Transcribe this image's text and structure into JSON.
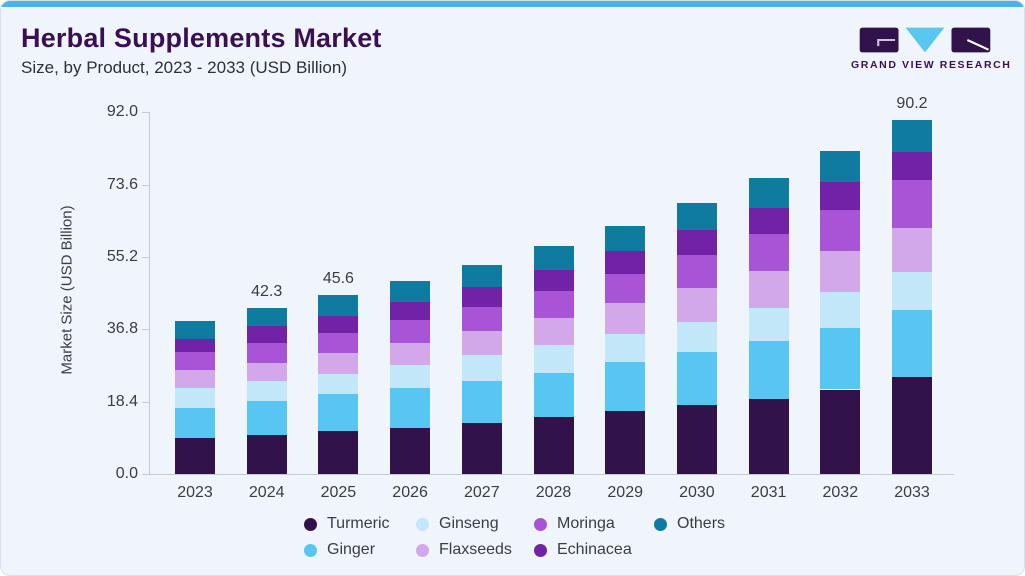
{
  "header": {
    "title": "Herbal Supplements Market",
    "subtitle": "Size, by Product, 2023 - 2033 (USD Billion)"
  },
  "brand": {
    "name": "GRAND VIEW RESEARCH",
    "logo_colors": {
      "block": "#31124a",
      "triangle": "#5ac8ee"
    }
  },
  "chart_data": {
    "type": "bar",
    "stacked": true,
    "title": "Herbal Supplements Market",
    "xlabel": "",
    "ylabel": "Market Size (USD Billion)",
    "categories": [
      "2023",
      "2024",
      "2025",
      "2026",
      "2027",
      "2028",
      "2029",
      "2030",
      "2031",
      "2032",
      "2033"
    ],
    "yticks": [
      0.0,
      18.4,
      36.8,
      55.2,
      73.6,
      92.0
    ],
    "ylim": [
      0,
      92
    ],
    "grid": false,
    "legend_position": "bottom",
    "series": [
      {
        "name": "Turmeric",
        "color": "#321349",
        "values": [
          9.1,
          10.0,
          10.9,
          11.7,
          13.1,
          14.5,
          16.0,
          17.6,
          19.2,
          21.5,
          24.6
        ]
      },
      {
        "name": "Ginger",
        "color": "#57c7f2",
        "values": [
          7.6,
          8.5,
          9.5,
          10.1,
          10.6,
          11.3,
          12.4,
          13.4,
          14.7,
          15.7,
          17.1
        ]
      },
      {
        "name": "Ginseng",
        "color": "#c2e7f8",
        "values": [
          5.1,
          5.1,
          5.1,
          5.9,
          6.5,
          7.0,
          7.3,
          7.8,
          8.4,
          9.0,
          9.6
        ]
      },
      {
        "name": "Flaxseeds",
        "color": "#d2a8ea",
        "values": [
          4.6,
          4.7,
          5.4,
          5.7,
          6.3,
          7.0,
          7.7,
          8.5,
          9.4,
          10.5,
          11.3
        ]
      },
      {
        "name": "Moringa",
        "color": "#a854d6",
        "values": [
          4.6,
          5.1,
          4.9,
          5.7,
          6.1,
          6.8,
          7.4,
          8.4,
          9.4,
          10.5,
          12.2
        ]
      },
      {
        "name": "Echinacea",
        "color": "#7122a6",
        "values": [
          3.4,
          4.3,
          4.5,
          4.7,
          5.0,
          5.4,
          5.9,
          6.3,
          6.7,
          7.1,
          7.2
        ]
      },
      {
        "name": "Others",
        "color": "#0f7ba0",
        "values": [
          4.6,
          4.6,
          5.3,
          5.4,
          5.7,
          6.0,
          6.3,
          6.9,
          7.4,
          7.8,
          8.2
        ]
      }
    ],
    "bar_total_labels": {
      "2024": "42.3",
      "2025": "45.6",
      "2033": "90.2"
    },
    "legend_columns": [
      [
        "Turmeric",
        "Ginger"
      ],
      [
        "Ginseng",
        "Flaxseeds"
      ],
      [
        "Moringa",
        "Echinacea"
      ],
      [
        "Others"
      ]
    ]
  }
}
